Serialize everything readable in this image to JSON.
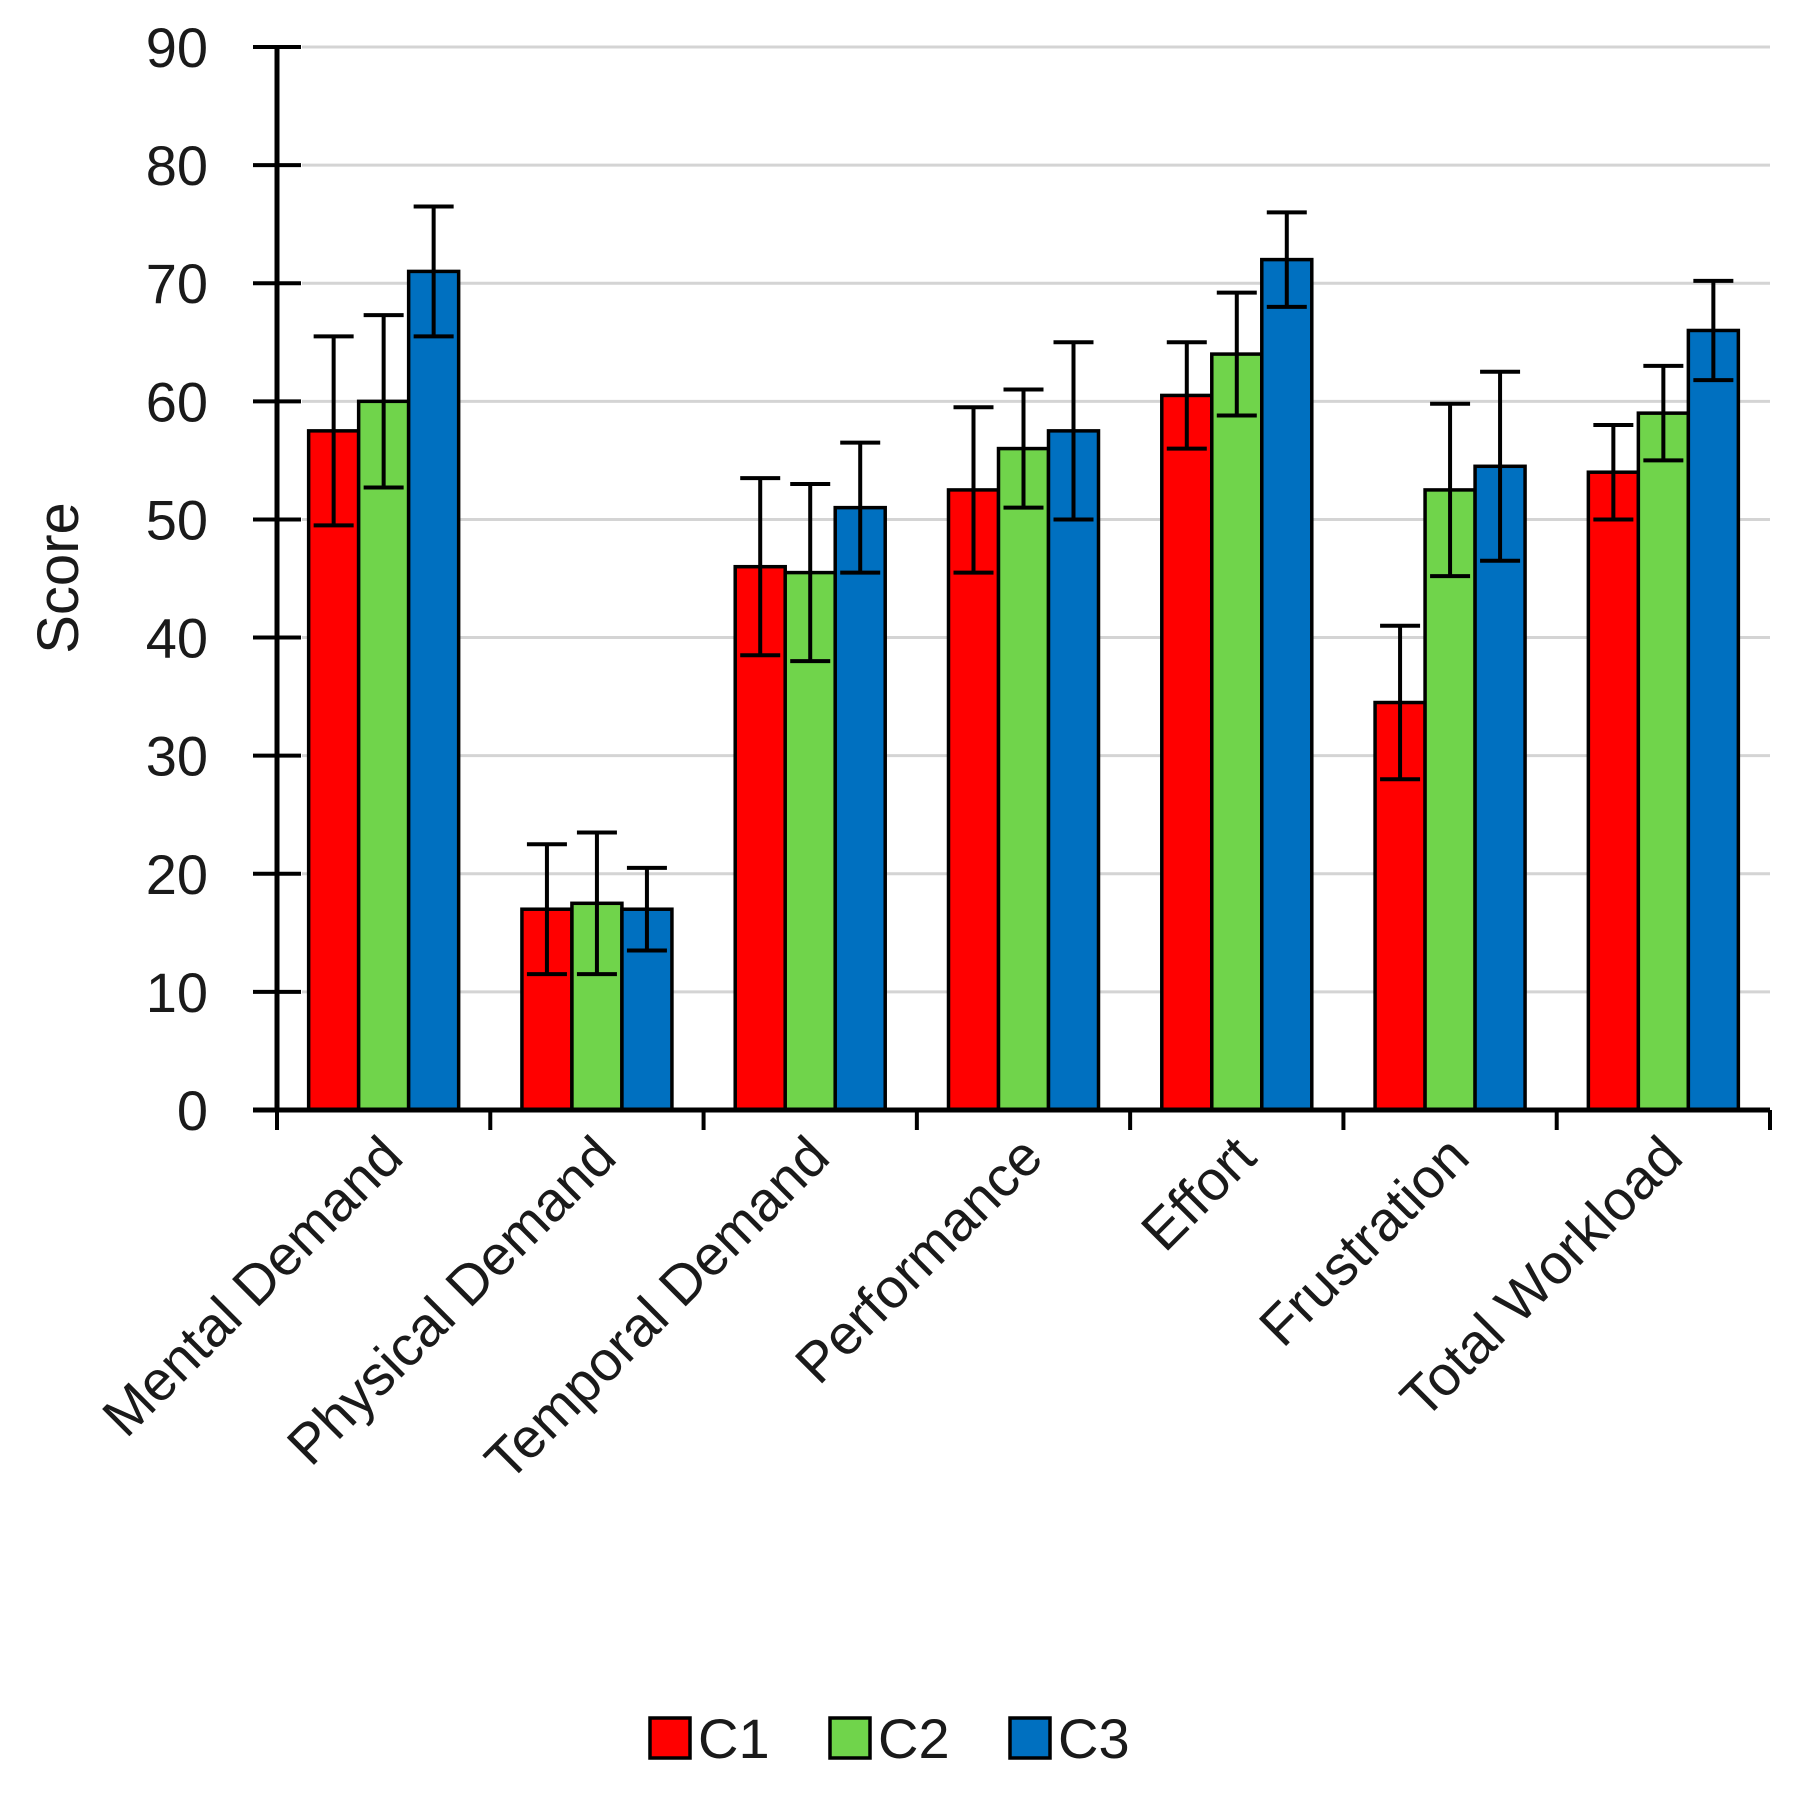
{
  "chart_data": {
    "type": "bar",
    "title": "",
    "xlabel": "",
    "ylabel": "Score",
    "ylim": [
      0,
      90
    ],
    "yticks": [
      0,
      10,
      20,
      30,
      40,
      50,
      60,
      70,
      80,
      90
    ],
    "grid": true,
    "legend_position": "bottom-center",
    "categories": [
      "Mental Demand",
      "Physical Demand",
      "Temporal Demand",
      "Performance",
      "Effort",
      "Frustration",
      "Total Workload"
    ],
    "series": [
      {
        "name": "C1",
        "color": "#ff0000",
        "values": [
          57.5,
          17,
          46,
          52.5,
          60.5,
          34.5,
          54
        ],
        "errors": [
          8,
          5.5,
          7.5,
          7,
          4.5,
          6.5,
          4
        ]
      },
      {
        "name": "C2",
        "color": "#70d44b",
        "values": [
          60,
          17.5,
          45.5,
          56,
          64,
          52.5,
          59
        ],
        "errors": [
          7.3,
          6,
          7.5,
          5,
          5.2,
          7.3,
          4
        ]
      },
      {
        "name": "C3",
        "color": "#0070c0",
        "values": [
          71,
          17,
          51,
          57.5,
          72,
          54.5,
          66
        ],
        "errors": [
          5.5,
          3.5,
          5.5,
          7.5,
          4,
          8,
          4.2
        ]
      }
    ]
  }
}
